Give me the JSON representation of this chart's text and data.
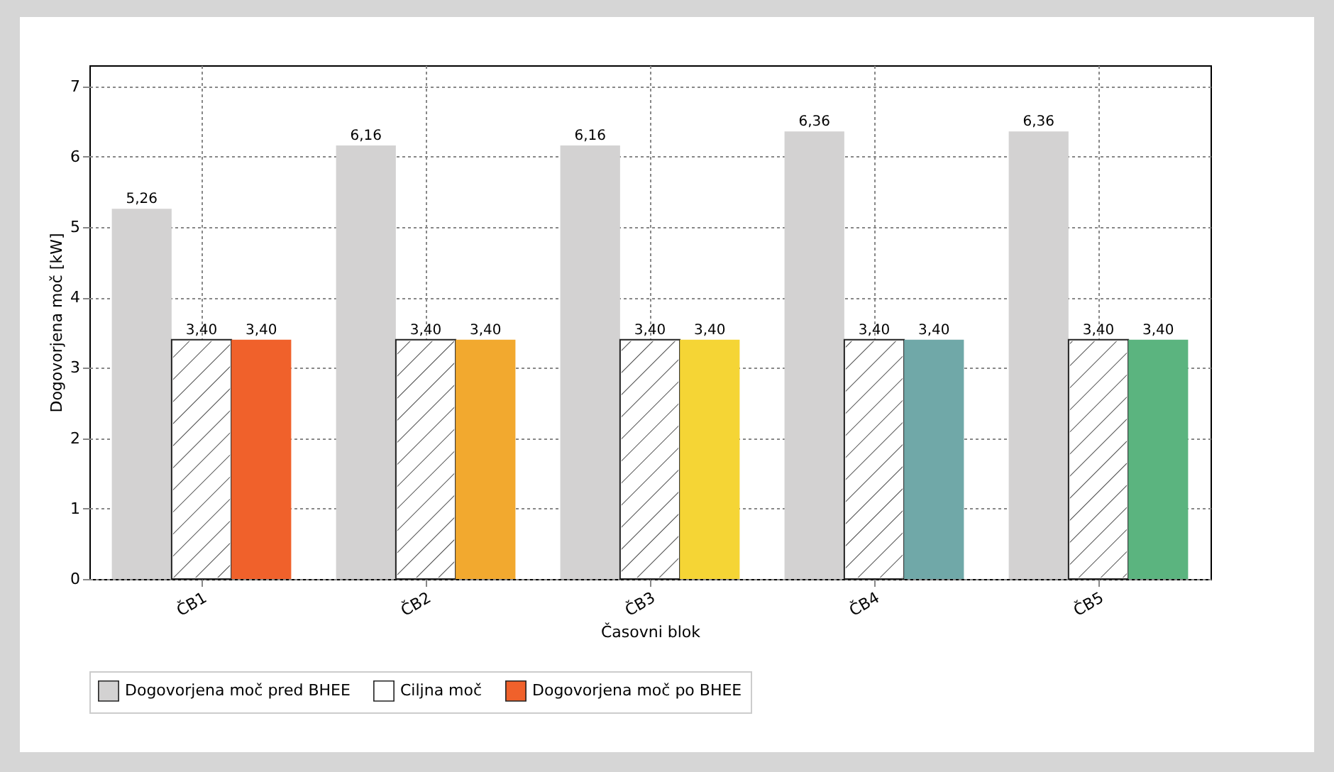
{
  "chart_data": {
    "type": "bar",
    "xlabel": "Časovni blok",
    "ylabel": "Dogovorjena moč [kW]",
    "categories": [
      "ČB1",
      "ČB2",
      "ČB3",
      "ČB4",
      "ČB5"
    ],
    "series": [
      {
        "name": "Dogovorjena moč pred BHEE",
        "color": "#d3d2d2",
        "values": [
          5.26,
          6.16,
          6.16,
          6.36,
          6.36
        ],
        "value_labels": [
          "5,26",
          "6,16",
          "6,16",
          "6,36",
          "6,36"
        ]
      },
      {
        "name": "Ciljna moč",
        "color": "#ffffff",
        "values": [
          3.4,
          3.4,
          3.4,
          3.4,
          3.4
        ],
        "value_labels": [
          "3,40",
          "3,40",
          "3,40",
          "3,40",
          "3,40"
        ]
      },
      {
        "name": "Dogovorjena moč po BHEE",
        "colors": [
          "#f0612b",
          "#f2a92f",
          "#f5d535",
          "#70a8a8",
          "#5bb47f"
        ],
        "values": [
          3.4,
          3.4,
          3.4,
          3.4,
          3.4
        ],
        "value_labels": [
          "3,40",
          "3,40",
          "3,40",
          "3,40",
          "3,40"
        ]
      }
    ],
    "ylim": [
      0,
      7.3
    ],
    "yticks": [
      0,
      1,
      2,
      3,
      4,
      5,
      6,
      7
    ],
    "grid": true,
    "legend": "bottom"
  }
}
